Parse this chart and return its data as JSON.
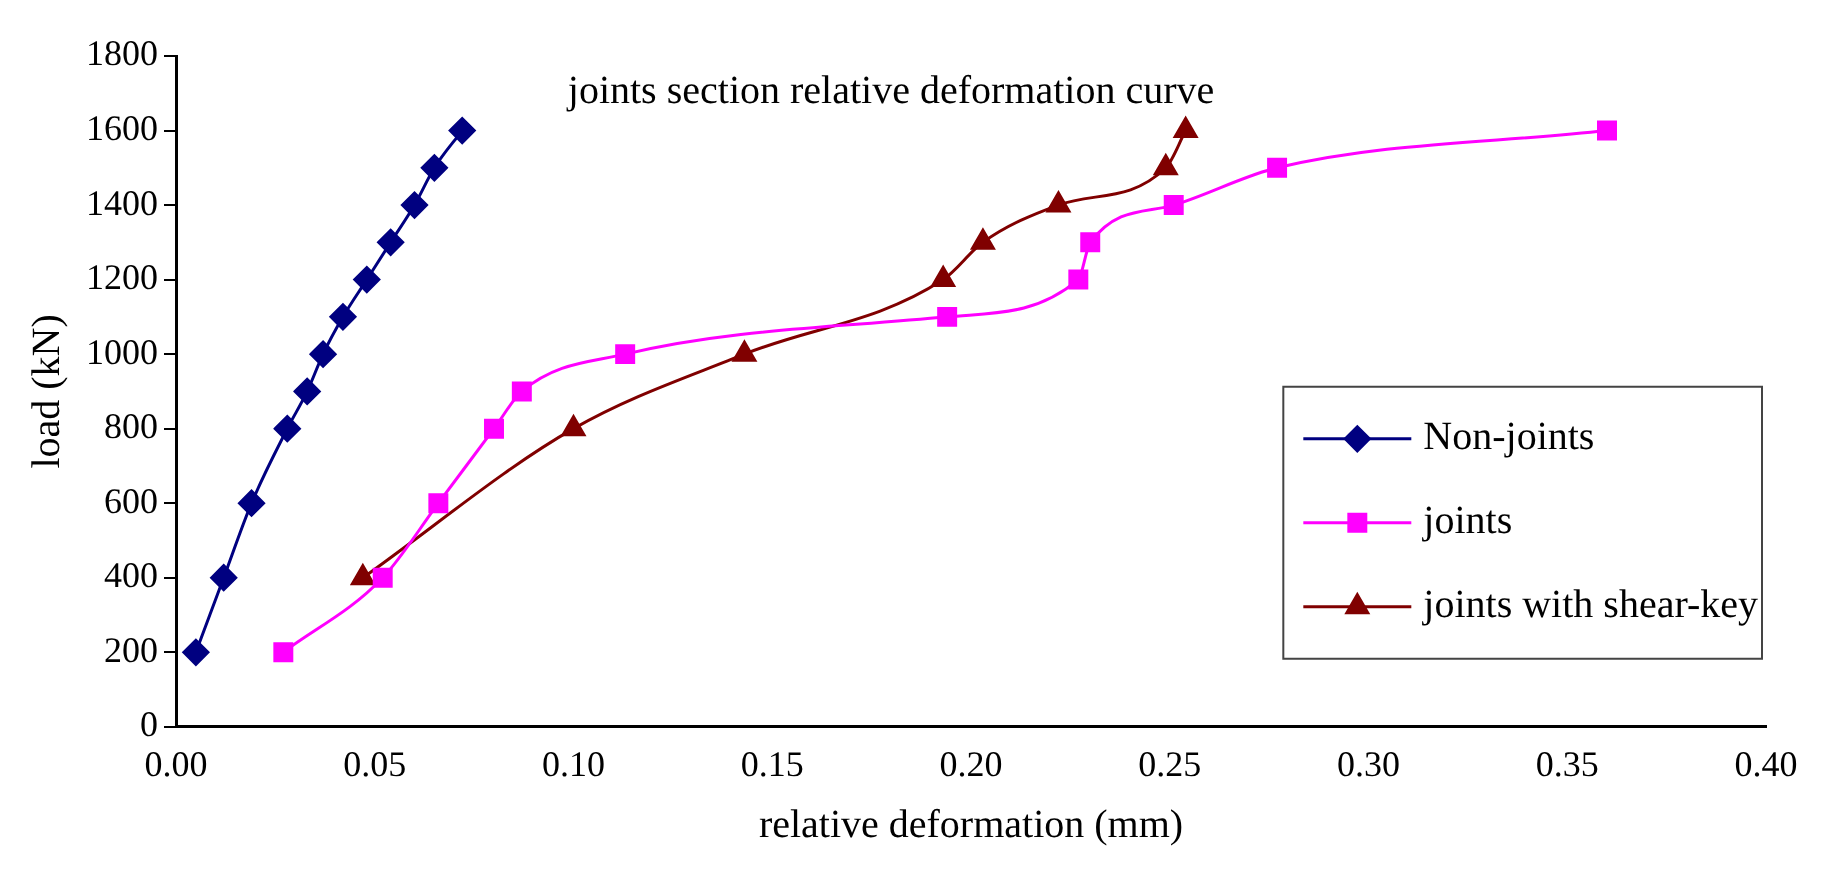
{
  "chart_data": {
    "type": "line",
    "title": "joints section relative deformation curve",
    "xlabel": "relative deformation (mm)",
    "ylabel": "load (kN)",
    "xlim": [
      0,
      0.4
    ],
    "xticks": [
      {
        "value": 0,
        "label": "0.00"
      },
      {
        "value": 0.05,
        "label": "0.05"
      },
      {
        "value": 0.1,
        "label": "0.10"
      },
      {
        "value": 0.15,
        "label": "0.15"
      },
      {
        "value": 0.2,
        "label": "0.20"
      },
      {
        "value": 0.25,
        "label": "0.25"
      },
      {
        "value": 0.3,
        "label": "0.30"
      },
      {
        "value": 0.35,
        "label": "0.35"
      },
      {
        "value": 0.4,
        "label": "0.40"
      }
    ],
    "ylim": [
      0,
      1800
    ],
    "yticks": [
      0,
      200,
      400,
      600,
      800,
      1000,
      1200,
      1400,
      1600,
      1800
    ],
    "grid": false,
    "legend": "bottom right",
    "series": [
      {
        "name": "Non-joints",
        "color": "#000080",
        "marker": "diamond",
        "x": [
          0.005,
          0.012,
          0.019,
          0.028,
          0.033,
          0.037,
          0.042,
          0.048,
          0.054,
          0.06,
          0.065,
          0.072
        ],
        "values": [
          200,
          400,
          600,
          800,
          900,
          1000,
          1100,
          1200,
          1300,
          1400,
          1500,
          1600
        ]
      },
      {
        "name": "joints",
        "color": "#ff00ff",
        "marker": "square",
        "x": [
          0.027,
          0.052,
          0.066,
          0.08,
          0.087,
          0.113,
          0.194,
          0.227,
          0.23,
          0.251,
          0.277,
          0.36
        ],
        "values": [
          200,
          400,
          600,
          800,
          900,
          1000,
          1100,
          1200,
          1300,
          1400,
          1500,
          1600
        ]
      },
      {
        "name": "joints with shear-key",
        "color": "#800000",
        "marker": "triangle",
        "x": [
          0.047,
          0.1,
          0.143,
          0.193,
          0.203,
          0.222,
          0.249,
          0.254
        ],
        "values": [
          400,
          800,
          1000,
          1200,
          1300,
          1400,
          1500,
          1600
        ]
      }
    ]
  }
}
